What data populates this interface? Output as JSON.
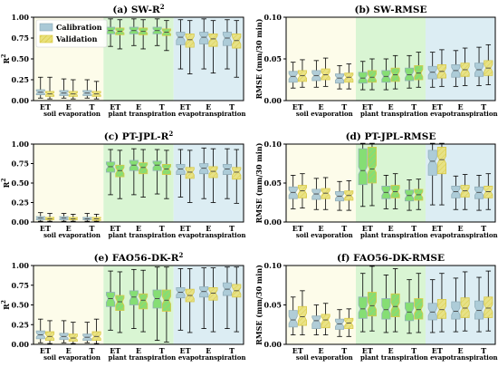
{
  "colors": {
    "soil_bg": "#fdfcea",
    "plant_bg": "#d9f5d3",
    "evap_bg": "#dcedf3",
    "calibration_fill": "#a9c9d6",
    "validation_fill": "#e9e17c",
    "validation_edge": "#d7c63b",
    "green_fill": "#7ddc6a",
    "median": "#444444",
    "whisker": "#000000"
  },
  "legend": {
    "calibration": "Calibration",
    "validation": "Validation"
  },
  "chart_data": [
    {
      "id": "a",
      "type": "box",
      "title": "(a) SW-R2",
      "title_main": "(a) SW-R",
      "title_sup": "2",
      "ylabel": "R",
      "ylabel_sup": "2",
      "ylim": [
        0,
        1
      ],
      "yticks": [
        "0.00",
        "0.25",
        "0.50",
        "0.75",
        "1.00"
      ],
      "ytick_values": [
        0,
        0.25,
        0.5,
        0.75,
        1
      ],
      "categories": [
        "ET",
        "E",
        "T",
        "ET",
        "E",
        "T",
        "ET",
        "E",
        "T"
      ],
      "groups": [
        "soil evaporation",
        "plant transpiration",
        "evapotranspiration"
      ],
      "legend": true,
      "series": [
        {
          "name": "Calibration",
          "boxes": [
            [
              0.03,
              0.07,
              0.1,
              0.13,
              0.28
            ],
            [
              0.03,
              0.06,
              0.09,
              0.12,
              0.26
            ],
            [
              0.03,
              0.06,
              0.09,
              0.12,
              0.25
            ],
            [
              0.65,
              0.8,
              0.84,
              0.88,
              0.98
            ],
            [
              0.66,
              0.8,
              0.84,
              0.88,
              0.98
            ],
            [
              0.66,
              0.8,
              0.84,
              0.88,
              0.98
            ],
            [
              0.38,
              0.67,
              0.76,
              0.82,
              0.97
            ],
            [
              0.38,
              0.68,
              0.76,
              0.82,
              0.98
            ],
            [
              0.38,
              0.66,
              0.75,
              0.82,
              0.97
            ]
          ]
        },
        {
          "name": "Validation",
          "boxes": [
            [
              0.02,
              0.05,
              0.08,
              0.11,
              0.28
            ],
            [
              0.02,
              0.05,
              0.08,
              0.11,
              0.25
            ],
            [
              0.02,
              0.05,
              0.08,
              0.11,
              0.23
            ],
            [
              0.62,
              0.79,
              0.83,
              0.87,
              0.97
            ],
            [
              0.62,
              0.79,
              0.83,
              0.87,
              0.97
            ],
            [
              0.6,
              0.78,
              0.82,
              0.86,
              0.96
            ],
            [
              0.32,
              0.64,
              0.73,
              0.8,
              0.96
            ],
            [
              0.33,
              0.65,
              0.74,
              0.8,
              0.96
            ],
            [
              0.28,
              0.63,
              0.72,
              0.8,
              0.96
            ]
          ]
        }
      ]
    },
    {
      "id": "b",
      "type": "box",
      "title": "(b) SW-RMSE",
      "title_main": "(b) SW-RMSE",
      "title_sup": "",
      "ylabel": "RMSE (mm/30 min)",
      "ylabel_sup": "",
      "ylim": [
        0,
        0.1
      ],
      "yticks": [
        "0.00",
        "0.05",
        "0.10"
      ],
      "ytick_values": [
        0,
        0.05,
        0.1
      ],
      "categories": [
        "ET",
        "E",
        "T",
        "ET",
        "E",
        "T",
        "ET",
        "E",
        "T"
      ],
      "groups": [
        "soil evaporation",
        "plant transpiration",
        "evapotranspiration"
      ],
      "legend": false,
      "series": [
        {
          "name": "Calibration",
          "boxes": [
            [
              0.015,
              0.022,
              0.029,
              0.035,
              0.046
            ],
            [
              0.016,
              0.024,
              0.03,
              0.036,
              0.048
            ],
            [
              0.014,
              0.021,
              0.027,
              0.032,
              0.042
            ],
            [
              0.013,
              0.021,
              0.027,
              0.034,
              0.047
            ],
            [
              0.013,
              0.022,
              0.029,
              0.036,
              0.05
            ],
            [
              0.015,
              0.024,
              0.031,
              0.039,
              0.054
            ],
            [
              0.016,
              0.026,
              0.034,
              0.041,
              0.058
            ],
            [
              0.017,
              0.028,
              0.036,
              0.043,
              0.06
            ],
            [
              0.018,
              0.029,
              0.037,
              0.045,
              0.064
            ]
          ]
        },
        {
          "name": "Validation",
          "boxes": [
            [
              0.016,
              0.023,
              0.03,
              0.036,
              0.049
            ],
            [
              0.017,
              0.025,
              0.031,
              0.038,
              0.051
            ],
            [
              0.014,
              0.022,
              0.028,
              0.033,
              0.044
            ],
            [
              0.013,
              0.022,
              0.028,
              0.036,
              0.05
            ],
            [
              0.014,
              0.023,
              0.031,
              0.039,
              0.054
            ],
            [
              0.016,
              0.025,
              0.033,
              0.042,
              0.058
            ],
            [
              0.017,
              0.027,
              0.035,
              0.043,
              0.061
            ],
            [
              0.018,
              0.029,
              0.037,
              0.045,
              0.063
            ],
            [
              0.019,
              0.03,
              0.039,
              0.048,
              0.067
            ]
          ]
        }
      ]
    },
    {
      "id": "c",
      "type": "box",
      "title": "(c) PT-JPL-R2",
      "title_main": "(c) PT-JPL-R",
      "title_sup": "2",
      "ylabel": "R",
      "ylabel_sup": "2",
      "ylim": [
        0,
        1
      ],
      "yticks": [
        "0.00",
        "0.25",
        "0.50",
        "0.75",
        "1.00"
      ],
      "ytick_values": [
        0,
        0.25,
        0.5,
        0.75,
        1
      ],
      "categories": [
        "ET",
        "E",
        "T",
        "ET",
        "E",
        "T",
        "ET",
        "E",
        "T"
      ],
      "groups": [
        "soil evaporation",
        "plant transpiration",
        "evapotranspiration"
      ],
      "legend": false,
      "series": [
        {
          "name": "Calibration",
          "boxes": [
            [
              0.01,
              0.03,
              0.05,
              0.07,
              0.12
            ],
            [
              0.01,
              0.03,
              0.05,
              0.07,
              0.11
            ],
            [
              0.01,
              0.03,
              0.04,
              0.06,
              0.11
            ],
            [
              0.35,
              0.64,
              0.71,
              0.77,
              0.93
            ],
            [
              0.35,
              0.66,
              0.73,
              0.79,
              0.94
            ],
            [
              0.36,
              0.66,
              0.73,
              0.78,
              0.93
            ],
            [
              0.32,
              0.61,
              0.68,
              0.74,
              0.93
            ],
            [
              0.3,
              0.62,
              0.69,
              0.75,
              0.95
            ],
            [
              0.3,
              0.61,
              0.68,
              0.74,
              0.94
            ]
          ]
        },
        {
          "name": "Validation",
          "boxes": [
            [
              0.01,
              0.03,
              0.04,
              0.06,
              0.11
            ],
            [
              0.01,
              0.03,
              0.04,
              0.06,
              0.1
            ],
            [
              0.01,
              0.02,
              0.04,
              0.06,
              0.1
            ],
            [
              0.3,
              0.58,
              0.66,
              0.73,
              0.92
            ],
            [
              0.32,
              0.62,
              0.7,
              0.76,
              0.93
            ],
            [
              0.3,
              0.61,
              0.68,
              0.74,
              0.92
            ],
            [
              0.25,
              0.56,
              0.64,
              0.7,
              0.92
            ],
            [
              0.25,
              0.57,
              0.65,
              0.71,
              0.94
            ],
            [
              0.24,
              0.55,
              0.64,
              0.7,
              0.93
            ]
          ]
        }
      ]
    },
    {
      "id": "d",
      "type": "box",
      "title": "(d) PT-JPL-RMSE",
      "title_main": "(d) PT-JPL-RMSE",
      "title_sup": "",
      "ylabel": "RMSE (mm/30 min)",
      "ylabel_sup": "",
      "ylim": [
        0,
        0.1
      ],
      "yticks": [
        "0.00",
        "0.05",
        "0.10"
      ],
      "ytick_values": [
        0,
        0.05,
        0.1
      ],
      "categories": [
        "ET",
        "E",
        "T",
        "ET",
        "E",
        "T",
        "ET",
        "E",
        "T"
      ],
      "groups": [
        "soil evaporation",
        "plant transpiration",
        "evapotranspiration"
      ],
      "legend": false,
      "series": [
        {
          "name": "Calibration",
          "boxes": [
            [
              0.017,
              0.03,
              0.038,
              0.045,
              0.06
            ],
            [
              0.016,
              0.029,
              0.036,
              0.042,
              0.056
            ],
            [
              0.015,
              0.027,
              0.033,
              0.039,
              0.052
            ],
            [
              0.02,
              0.048,
              0.066,
              0.094,
              0.101
            ],
            [
              0.017,
              0.03,
              0.038,
              0.046,
              0.06
            ],
            [
              0.015,
              0.027,
              0.034,
              0.041,
              0.054
            ],
            [
              0.022,
              0.06,
              0.078,
              0.092,
              0.101
            ],
            [
              0.016,
              0.031,
              0.039,
              0.046,
              0.059
            ],
            [
              0.015,
              0.03,
              0.038,
              0.045,
              0.06
            ]
          ]
        },
        {
          "name": "Validation",
          "boxes": [
            [
              0.018,
              0.031,
              0.04,
              0.047,
              0.062
            ],
            [
              0.016,
              0.03,
              0.037,
              0.043,
              0.057
            ],
            [
              0.015,
              0.028,
              0.034,
              0.04,
              0.053
            ],
            [
              0.021,
              0.05,
              0.068,
              0.096,
              0.101
            ],
            [
              0.017,
              0.031,
              0.039,
              0.047,
              0.062
            ],
            [
              0.016,
              0.028,
              0.035,
              0.042,
              0.055
            ],
            [
              0.022,
              0.062,
              0.08,
              0.096,
              0.101
            ],
            [
              0.016,
              0.032,
              0.04,
              0.047,
              0.061
            ],
            [
              0.016,
              0.031,
              0.039,
              0.046,
              0.062
            ]
          ]
        }
      ]
    },
    {
      "id": "e",
      "type": "box",
      "title": "(e) FAO56-DK-R2",
      "title_main": "(e) FAO56-DK-R",
      "title_sup": "2",
      "ylabel": "R",
      "ylabel_sup": "2",
      "ylim": [
        0,
        1
      ],
      "yticks": [
        "0.00",
        "0.25",
        "0.50",
        "0.75",
        "1.00"
      ],
      "ytick_values": [
        0,
        0.25,
        0.5,
        0.75,
        1
      ],
      "categories": [
        "ET",
        "E",
        "T",
        "ET",
        "E",
        "T",
        "ET",
        "E",
        "T"
      ],
      "groups": [
        "soil evaporation",
        "plant transpiration",
        "evapotranspiration"
      ],
      "legend": false,
      "series": [
        {
          "name": "Calibration",
          "boxes": [
            [
              0.02,
              0.07,
              0.12,
              0.17,
              0.32
            ],
            [
              0.02,
              0.06,
              0.1,
              0.14,
              0.3
            ],
            [
              0.02,
              0.05,
              0.09,
              0.13,
              0.28
            ],
            [
              0.18,
              0.48,
              0.58,
              0.66,
              0.93
            ],
            [
              0.2,
              0.5,
              0.6,
              0.68,
              0.95
            ],
            [
              0.05,
              0.46,
              0.58,
              0.69,
              0.98
            ],
            [
              0.18,
              0.59,
              0.66,
              0.72,
              0.96
            ],
            [
              0.2,
              0.6,
              0.67,
              0.73,
              0.97
            ],
            [
              0.2,
              0.62,
              0.7,
              0.78,
              0.98
            ]
          ]
        },
        {
          "name": "Validation",
          "boxes": [
            [
              0.01,
              0.05,
              0.1,
              0.16,
              0.3
            ],
            [
              0.01,
              0.04,
              0.08,
              0.13,
              0.28
            ],
            [
              0.01,
              0.05,
              0.1,
              0.16,
              0.32
            ],
            [
              0.15,
              0.43,
              0.54,
              0.62,
              0.92
            ],
            [
              0.16,
              0.45,
              0.56,
              0.64,
              0.94
            ],
            [
              0.03,
              0.42,
              0.56,
              0.69,
              0.98
            ],
            [
              0.15,
              0.54,
              0.62,
              0.7,
              0.96
            ],
            [
              0.16,
              0.56,
              0.65,
              0.72,
              0.97
            ],
            [
              0.16,
              0.6,
              0.68,
              0.76,
              0.98
            ]
          ]
        }
      ]
    },
    {
      "id": "f",
      "type": "box",
      "title": "(f) FAO56-DK-RMSE",
      "title_main": "(f) FAO56-DK-RMSE",
      "title_sup": "",
      "ylabel": "RMSE (mm/30 min)",
      "ylabel_sup": "",
      "ylim": [
        0,
        0.1
      ],
      "yticks": [
        "0.00",
        "0.05",
        "0.10"
      ],
      "ytick_values": [
        0,
        0.05,
        0.1
      ],
      "categories": [
        "ET",
        "E",
        "T",
        "ET",
        "E",
        "T",
        "ET",
        "E",
        "T"
      ],
      "groups": [
        "soil evaporation",
        "plant transpiration",
        "evapotranspiration"
      ],
      "legend": false,
      "series": [
        {
          "name": "Calibration",
          "boxes": [
            [
              0.012,
              0.022,
              0.031,
              0.043,
              0.06
            ],
            [
              0.012,
              0.02,
              0.03,
              0.036,
              0.05
            ],
            [
              0.01,
              0.019,
              0.026,
              0.032,
              0.044
            ],
            [
              0.016,
              0.033,
              0.045,
              0.06,
              0.09
            ],
            [
              0.015,
              0.032,
              0.044,
              0.058,
              0.088
            ],
            [
              0.014,
              0.03,
              0.041,
              0.053,
              0.082
            ],
            [
              0.015,
              0.031,
              0.041,
              0.052,
              0.082
            ],
            [
              0.016,
              0.032,
              0.042,
              0.054,
              0.084
            ],
            [
              0.016,
              0.032,
              0.043,
              0.055,
              0.085
            ]
          ]
        },
        {
          "name": "Validation",
          "boxes": [
            [
              0.012,
              0.024,
              0.035,
              0.048,
              0.068
            ],
            [
              0.012,
              0.021,
              0.031,
              0.038,
              0.052
            ],
            [
              0.01,
              0.02,
              0.027,
              0.033,
              0.045
            ],
            [
              0.017,
              0.036,
              0.049,
              0.066,
              0.099
            ],
            [
              0.016,
              0.035,
              0.048,
              0.064,
              0.096
            ],
            [
              0.015,
              0.032,
              0.044,
              0.058,
              0.09
            ],
            [
              0.016,
              0.033,
              0.044,
              0.057,
              0.09
            ],
            [
              0.017,
              0.034,
              0.046,
              0.059,
              0.092
            ],
            [
              0.017,
              0.034,
              0.046,
              0.06,
              0.093
            ]
          ]
        }
      ]
    }
  ]
}
